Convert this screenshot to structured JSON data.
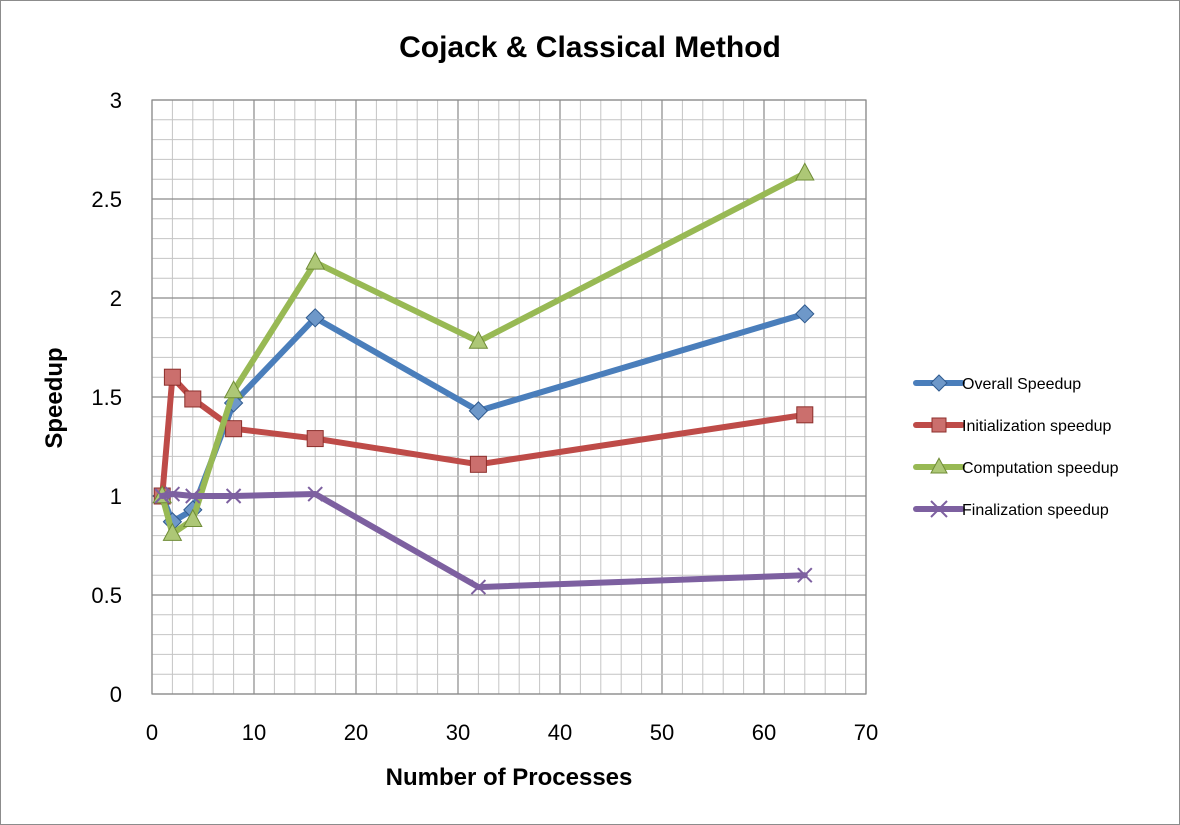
{
  "chart_data": {
    "type": "line",
    "title": "Cojack & Classical Method",
    "xlabel": "Number of Processes",
    "ylabel": "Speedup",
    "xlim": [
      0,
      70
    ],
    "ylim": [
      0,
      3
    ],
    "x_ticks": [
      0,
      10,
      20,
      30,
      40,
      50,
      60,
      70
    ],
    "y_ticks": [
      0,
      0.5,
      1,
      1.5,
      2,
      2.5,
      3
    ],
    "x_tick_labels": [
      "0",
      "10",
      "20",
      "30",
      "40",
      "50",
      "60",
      "70"
    ],
    "y_tick_labels": [
      "0",
      "0.5",
      "1",
      "1.5",
      "2",
      "2.5",
      "3"
    ],
    "grid": true,
    "minor_grid": true,
    "legend_position": "right",
    "series": [
      {
        "name": "Overall Speedup",
        "color": "#4A7EBB",
        "marker": "diamond",
        "x": [
          1,
          2,
          4,
          8,
          16,
          32,
          64
        ],
        "y": [
          1.0,
          0.87,
          0.93,
          1.47,
          1.9,
          1.43,
          1.92
        ]
      },
      {
        "name": "Initialization speedup",
        "color": "#BE4B48",
        "marker": "square",
        "x": [
          1,
          2,
          4,
          8,
          16,
          32,
          64
        ],
        "y": [
          1.0,
          1.6,
          1.49,
          1.34,
          1.29,
          1.16,
          1.41
        ]
      },
      {
        "name": "Computation speedup",
        "color": "#98B954",
        "marker": "triangle",
        "x": [
          1,
          2,
          4,
          8,
          16,
          32,
          64
        ],
        "y": [
          1.0,
          0.81,
          0.88,
          1.53,
          2.18,
          1.78,
          2.63
        ]
      },
      {
        "name": "Finalization speedup",
        "color": "#7D60A0",
        "marker": "x",
        "x": [
          1,
          2,
          4,
          8,
          16,
          32,
          64
        ],
        "y": [
          1.0,
          1.01,
          1.0,
          1.0,
          1.01,
          0.54,
          0.6
        ]
      }
    ]
  }
}
